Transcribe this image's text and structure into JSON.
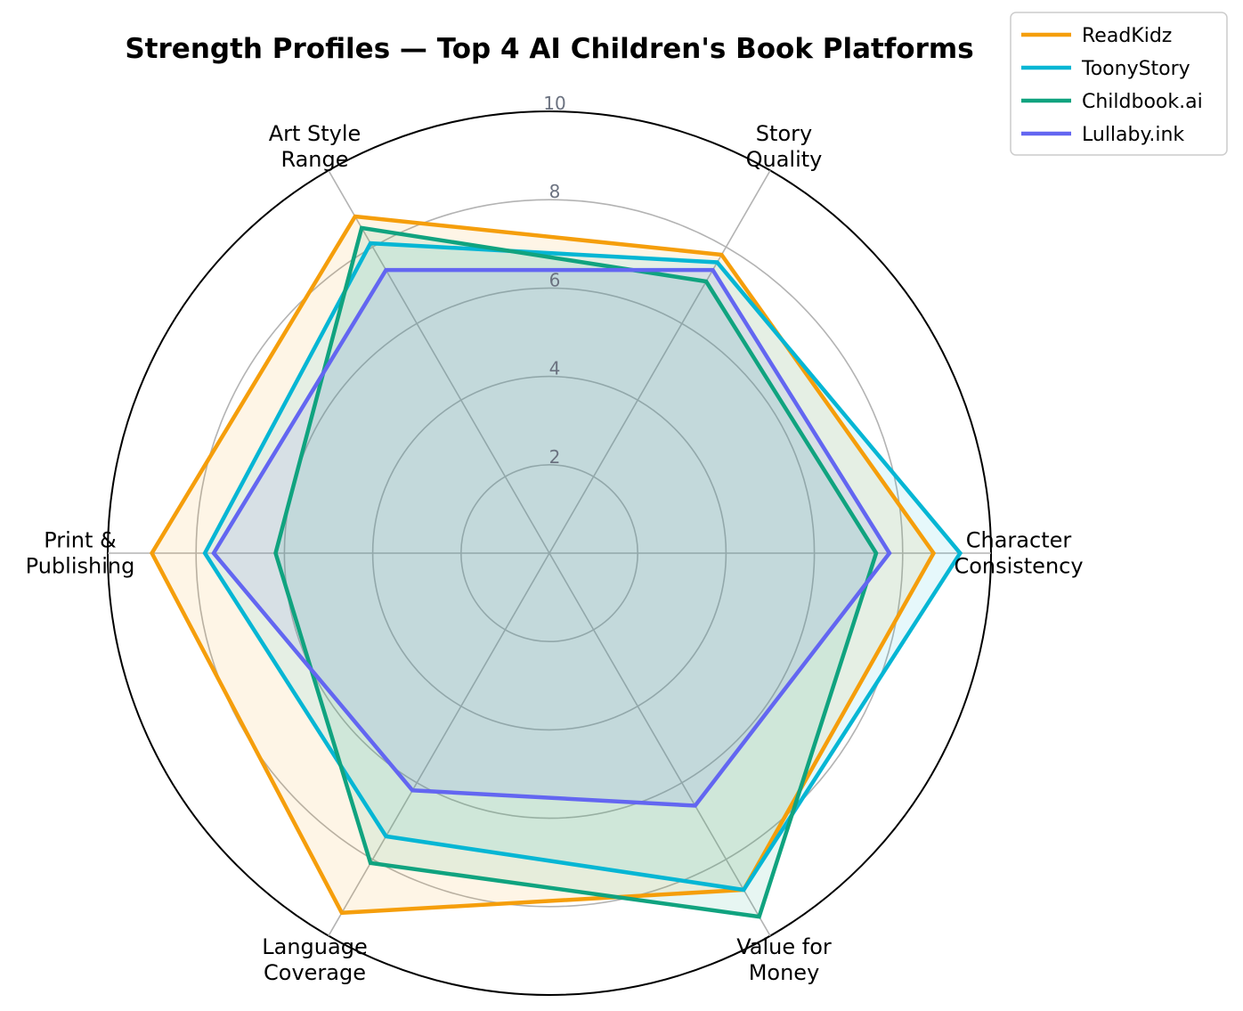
{
  "chart_data": {
    "type": "radar",
    "title": "Strength Profiles — Top 4 AI Children's Book Platforms",
    "axes": [
      [
        "Character",
        "Consistency"
      ],
      [
        "Story",
        "Quality"
      ],
      [
        "Art Style",
        "Range"
      ],
      [
        "Print &",
        "Publishing"
      ],
      [
        "Language",
        "Coverage"
      ],
      [
        "Value for",
        "Money"
      ]
    ],
    "rlim": [
      0,
      10
    ],
    "r_ticks": [
      "2",
      "4",
      "6",
      "8",
      "10"
    ],
    "grid": true,
    "legend_position": "top-right",
    "series": [
      {
        "name": "ReadKidz",
        "color": "#F59E0B",
        "values": [
          8.7,
          7.8,
          8.8,
          9.0,
          9.4,
          8.8
        ]
      },
      {
        "name": "ToonyStory",
        "color": "#06B6D4",
        "values": [
          9.3,
          7.6,
          8.1,
          7.8,
          7.4,
          8.8
        ]
      },
      {
        "name": "Childbook.ai",
        "color": "#10A37F",
        "values": [
          7.4,
          7.1,
          8.5,
          6.2,
          8.1,
          9.5
        ]
      },
      {
        "name": "Lullaby.ink",
        "color": "#6366F1",
        "values": [
          7.7,
          7.4,
          7.4,
          7.6,
          6.2,
          6.6
        ]
      }
    ]
  }
}
